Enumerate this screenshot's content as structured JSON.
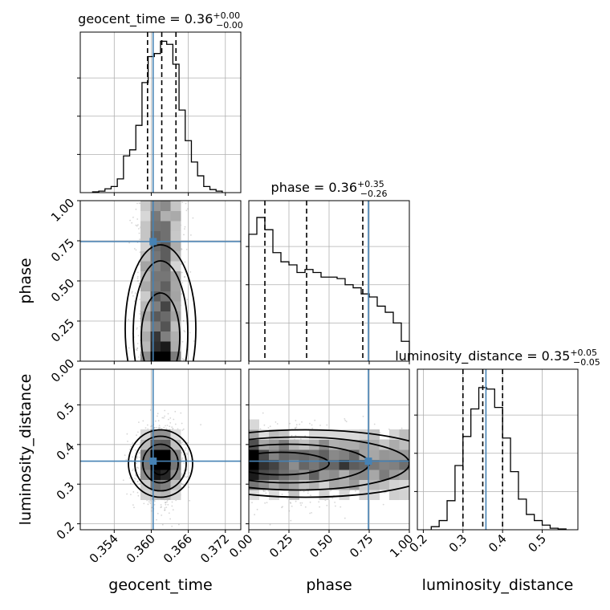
{
  "chart_data": {
    "type": "corner",
    "parameters": [
      "geocent_time",
      "phase",
      "luminosity_distance"
    ],
    "titles": {
      "geocent_time": {
        "name": "geocent_time",
        "value": "0.36",
        "plus": "+0.00",
        "minus": "−0.00"
      },
      "phase": {
        "name": "phase",
        "value": "0.36",
        "plus": "+0.35",
        "minus": "−0.26"
      },
      "luminosity_distance": {
        "name": "luminosity_distance",
        "value": "0.35",
        "plus": "+0.05",
        "minus": "−0.05"
      }
    },
    "ranges": {
      "geocent_time": [
        0.3485,
        0.3745
      ],
      "phase": [
        0.0,
        1.0
      ],
      "luminosity_distance": [
        0.185,
        0.59
      ]
    },
    "ticks": {
      "geocent_time": [
        0.354,
        0.36,
        0.366,
        0.372
      ],
      "phase": [
        0.0,
        0.25,
        0.5,
        0.75,
        1.0
      ],
      "luminosity_distance_y": [
        0.2,
        0.3,
        0.4,
        0.5
      ],
      "luminosity_distance_x": [
        0.2,
        0.3,
        0.4,
        0.5
      ]
    },
    "tick_labels": {
      "geocent_time": [
        "0.354",
        "0.360",
        "0.366",
        "0.372"
      ],
      "phase": [
        "0.00",
        "0.25",
        "0.50",
        "0.75",
        "1.00"
      ],
      "luminosity_distance": [
        "0.2",
        "0.3",
        "0.4",
        "0.5"
      ]
    },
    "truths": {
      "geocent_time": 0.3603,
      "phase": 0.745,
      "luminosity_distance": 0.358
    },
    "quantiles": {
      "geocent_time": [
        0.3594,
        0.3617,
        0.364
      ],
      "phase": [
        0.1,
        0.36,
        0.71
      ],
      "luminosity_distance": [
        0.3,
        0.35,
        0.4
      ]
    },
    "histograms": {
      "geocent_time": {
        "edges": [
          0.3505,
          0.3515,
          0.3525,
          0.3535,
          0.3545,
          0.3555,
          0.3565,
          0.3575,
          0.3585,
          0.3595,
          0.3605,
          0.3615,
          0.3625,
          0.3635,
          0.3645,
          0.3655,
          0.3665,
          0.3675,
          0.3685,
          0.3695,
          0.3705,
          0.3715
        ],
        "counts": [
          0.005,
          0.01,
          0.025,
          0.04,
          0.09,
          0.24,
          0.28,
          0.44,
          0.72,
          0.89,
          0.91,
          0.99,
          0.97,
          0.84,
          0.54,
          0.34,
          0.2,
          0.11,
          0.04,
          0.02,
          0.01
        ]
      },
      "phase": {
        "edges": [
          0.0,
          0.05,
          0.1,
          0.15,
          0.2,
          0.25,
          0.3,
          0.35,
          0.4,
          0.45,
          0.5,
          0.55,
          0.6,
          0.65,
          0.7,
          0.75,
          0.8,
          0.85,
          0.9,
          0.95,
          1.0
        ],
        "counts": [
          0.83,
          0.94,
          0.86,
          0.71,
          0.65,
          0.63,
          0.58,
          0.6,
          0.58,
          0.55,
          0.55,
          0.54,
          0.5,
          0.48,
          0.44,
          0.42,
          0.36,
          0.32,
          0.25,
          0.13
        ]
      },
      "luminosity_distance": {
        "edges": [
          0.22,
          0.24,
          0.26,
          0.28,
          0.3,
          0.32,
          0.34,
          0.36,
          0.38,
          0.4,
          0.42,
          0.44,
          0.46,
          0.48,
          0.5,
          0.52,
          0.54,
          0.56
        ],
        "counts": [
          0.02,
          0.06,
          0.19,
          0.42,
          0.61,
          0.79,
          0.93,
          0.92,
          0.8,
          0.6,
          0.38,
          0.2,
          0.1,
          0.06,
          0.03,
          0.01,
          0.005
        ]
      }
    },
    "ylabels": {
      "phase": "phase",
      "luminosity_distance": "luminosity_distance"
    },
    "xlabels": {
      "geocent_time": "geocent_time",
      "phase": "phase",
      "luminosity_distance": "luminosity_distance"
    },
    "grid": true
  }
}
